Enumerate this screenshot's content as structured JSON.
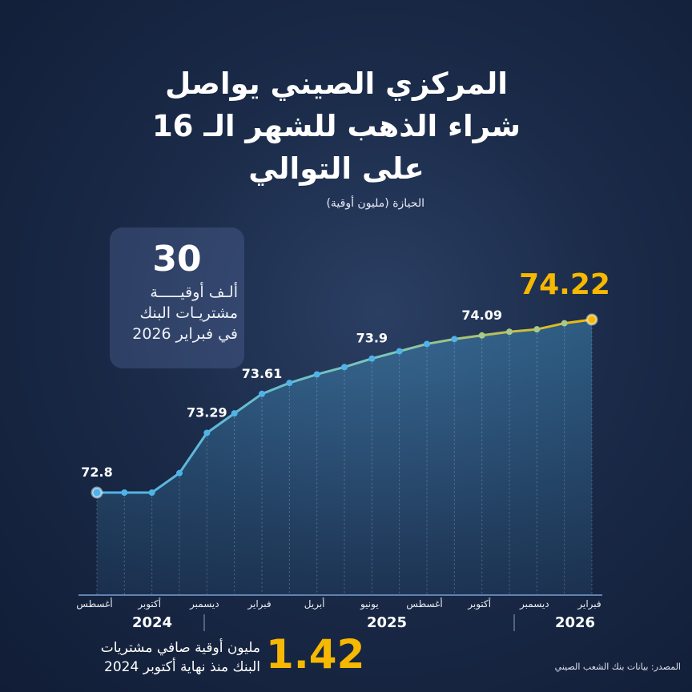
{
  "title_lines": [
    "المركزي الصيني يواصل",
    "شراء الذهب للشهر الـ 16",
    "على التوالي"
  ],
  "subtitle": "الحيازة (مليون أوقية)",
  "card": {
    "number": "30",
    "lines": [
      "ألـف أوقيـــــة",
      "مشتريـات البنك",
      "في فبراير 2026"
    ]
  },
  "stat": {
    "number": "1.42",
    "lines": [
      "مليون أوقية صافي مشتريات",
      "البنك منذ نهاية أكتوبر 2024"
    ]
  },
  "source": "المصدر: بيانات بنك الشعب الصيني",
  "colors": {
    "line": "#4fb3e8",
    "highlight": "#f6b800",
    "background": "#1a2a48"
  },
  "chart_data": {
    "type": "line",
    "x": [
      "2024-08",
      "2024-09",
      "2024-10",
      "2024-11",
      "2024-12",
      "2025-01",
      "2025-02",
      "2025-03",
      "2025-04",
      "2025-05",
      "2025-06",
      "2025-07",
      "2025-08",
      "2025-09",
      "2025-10",
      "2025-11",
      "2025-12",
      "2026-01",
      "2026-02"
    ],
    "values": [
      72.8,
      72.8,
      72.8,
      72.96,
      73.29,
      73.45,
      73.61,
      73.7,
      73.77,
      73.83,
      73.9,
      73.96,
      74.02,
      74.06,
      74.09,
      74.12,
      74.14,
      74.19,
      74.22
    ],
    "data_labels": [
      {
        "index": 0,
        "text": "72.8"
      },
      {
        "index": 4,
        "text": "73.29"
      },
      {
        "index": 6,
        "text": "73.61"
      },
      {
        "index": 10,
        "text": "73.9"
      },
      {
        "index": 14,
        "text": "74.09"
      },
      {
        "index": 18,
        "text": "74.22"
      }
    ],
    "tick_labels": [
      {
        "index": 0,
        "text": "أغسطس"
      },
      {
        "index": 2,
        "text": "أكتوبر"
      },
      {
        "index": 4,
        "text": "ديسمبر"
      },
      {
        "index": 6,
        "text": "فبراير"
      },
      {
        "index": 8,
        "text": "أبريل"
      },
      {
        "index": 10,
        "text": "يونيو"
      },
      {
        "index": 12,
        "text": "أغسطس"
      },
      {
        "index": 14,
        "text": "أكتوبر"
      },
      {
        "index": 16,
        "text": "ديسمبر"
      },
      {
        "index": 18,
        "text": "فبراير"
      }
    ],
    "year_labels": [
      {
        "from": 0,
        "to": 4,
        "text": "2024"
      },
      {
        "from": 5,
        "to": 16,
        "text": "2025"
      },
      {
        "from": 17,
        "to": 18,
        "text": "2026"
      }
    ],
    "ylabel": "الحيازة (مليون أوقية)",
    "grid": false
  }
}
